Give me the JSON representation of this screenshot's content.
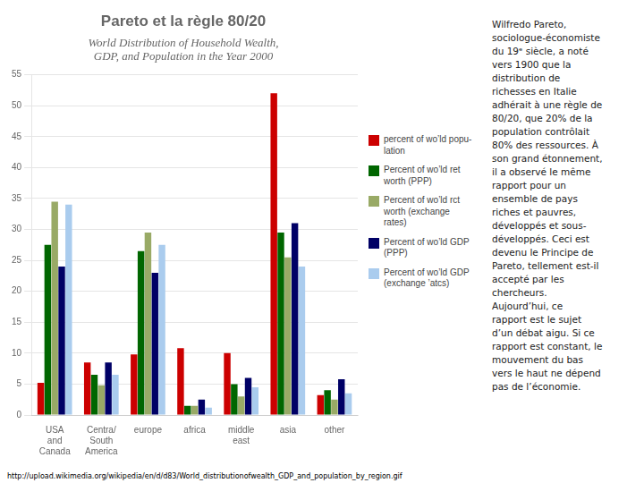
{
  "chart_data": {
    "type": "bar",
    "title": "Pareto et la règle 80/20",
    "subtitle": "World Distribution of Household Wealth,\nGDP, and Population in the Year 2000",
    "categories": [
      "USA\nand\nCanada",
      "Centra/\nSouth\nAmerica",
      "europe",
      "africa",
      "middle\neast",
      "asia",
      "other"
    ],
    "series": [
      {
        "name": "percent of wo’ld popu-\nlation",
        "color": "#cc0000",
        "values": [
          5.2,
          8.5,
          9.8,
          10.8,
          10.0,
          52.0,
          3.2
        ]
      },
      {
        "name": "Percent of wo’ld ret\nworth (PPP)",
        "color": "#006600",
        "values": [
          27.5,
          6.5,
          26.5,
          1.5,
          5.0,
          29.5,
          4.0
        ]
      },
      {
        "name": "Percent of wo’ld rct\nworth (exchange\nrates)",
        "color": "#99aa66",
        "values": [
          34.5,
          4.8,
          29.5,
          1.5,
          3.0,
          25.5,
          2.5
        ]
      },
      {
        "name": "Percent of wo’ld GDP\n(PPP)",
        "color": "#000066",
        "values": [
          24.0,
          8.5,
          23.0,
          2.5,
          6.0,
          31.0,
          5.8
        ]
      },
      {
        "name": "Percent of wo’ld GDP\n(exchange ’atcs)",
        "color": "#aaccee",
        "values": [
          34.0,
          6.5,
          27.5,
          1.2,
          4.5,
          24.0,
          3.5
        ]
      }
    ],
    "ylim": [
      0,
      55
    ],
    "yticks": [
      0,
      5,
      10,
      15,
      20,
      25,
      30,
      35,
      40,
      45,
      50,
      55
    ],
    "grid": true,
    "legend": "right",
    "annotations": [
      "http://upload.wikimedia.org/wikipedia/en/d/d83/World_distributionofwealth_GDP_and_population_by_region.gif",
      "Wilfredo Pareto,\nsociologue-économiste\ndu 19ᵉ siècle, a noté\nvers 1900 que la\ndistribution de\nrichesses en Italie\nadhérait à une règle de\n80/20, que 20% de la\npopulation contrôlait\n80% des ressources. À\nson grand étonnement,\nil a observé le même\nrapport pour un\nensemble de pays\nriches et pauvres,\ndéveloppés et sous-\ndéveloppés. Ceci est\ndevenu le Principe de\nPareto, tellement est-il\naccepté par les\nchercheurs.\nAujourd’hui, ce\nrapport est le sujet\nd’un débat aigu. Si ce\nrapport est constant, le\nmouvement du bas\nvers le haut ne dépend\npas de l’économie."
    ]
  }
}
